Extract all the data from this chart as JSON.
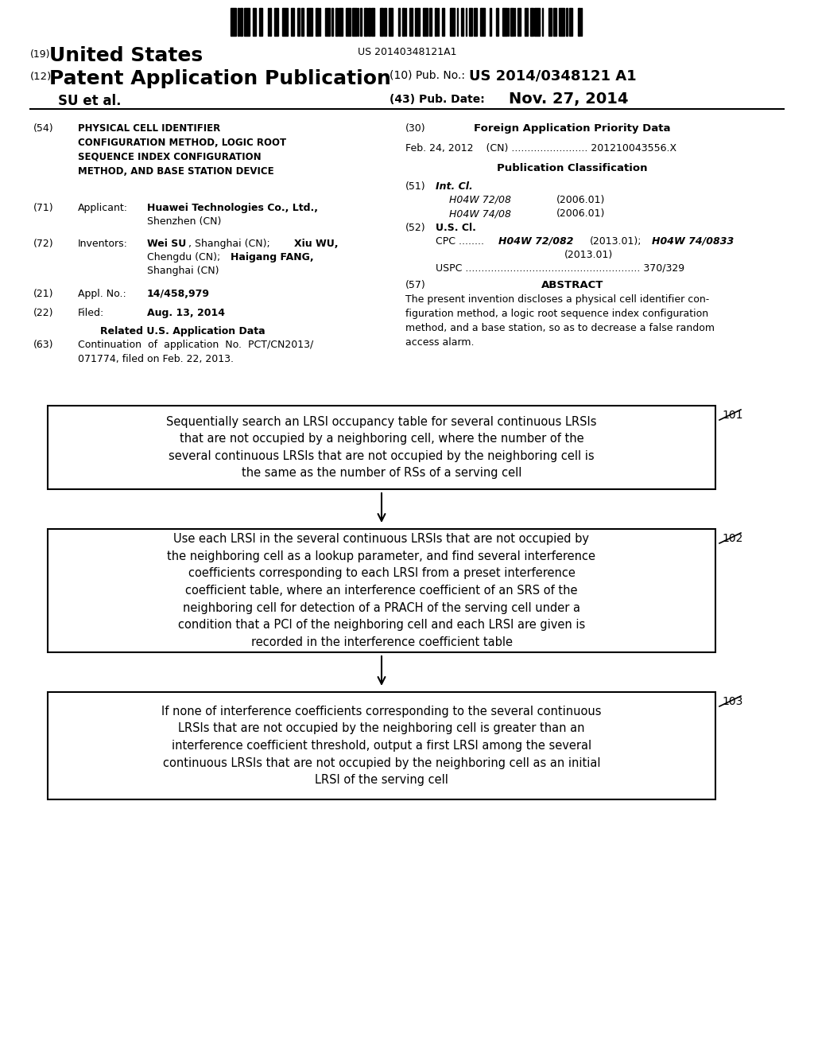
{
  "background_color": "#ffffff",
  "barcode_text": "US 20140348121A1",
  "box1_text": "Sequentially search an LRSI occupancy table for several continuous LRSIs\nthat are not occupied by a neighboring cell, where the number of the\nseveral continuous LRSIs that are not occupied by the neighboring cell is\nthe same as the number of RSs of a serving cell",
  "box1_label": "101",
  "box2_text": "Use each LRSI in the several continuous LRSIs that are not occupied by\nthe neighboring cell as a lookup parameter, and find several interference\ncoefficients corresponding to each LRSI from a preset interference\ncoefficient table, where an interference coefficient of an SRS of the\nneighboring cell for detection of a PRACH of the serving cell under a\ncondition that a PCI of the neighboring cell and each LRSI are given is\nrecorded in the interference coefficient table",
  "box2_label": "102",
  "box3_text": "If none of interference coefficients corresponding to the several continuous\nLRSIs that are not occupied by the neighboring cell is greater than an\ninterference coefficient threshold, output a first LRSI among the several\ncontinuous LRSIs that are not occupied by the neighboring cell as an initial\nLRSI of the serving cell",
  "box3_label": "103"
}
